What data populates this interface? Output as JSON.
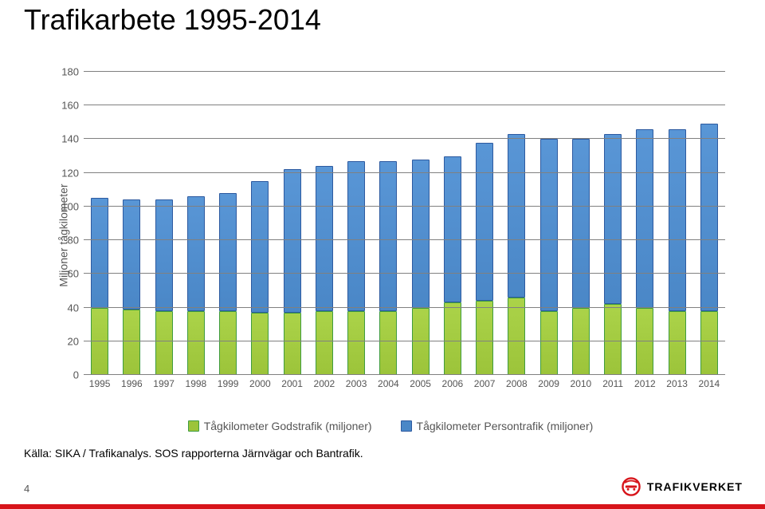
{
  "title": "Trafikarbete 1995-2014",
  "chart": {
    "type": "stacked-bar",
    "y_label": "Miljoner tågkilometer",
    "ylim": [
      0,
      180
    ],
    "ytick_step": 20,
    "yticks": [
      0,
      20,
      40,
      60,
      80,
      100,
      120,
      140,
      160,
      180
    ],
    "categories": [
      "1995",
      "1996",
      "1997",
      "1998",
      "1999",
      "2000",
      "2001",
      "2002",
      "2003",
      "2004",
      "2005",
      "2006",
      "2007",
      "2008",
      "2009",
      "2010",
      "2011",
      "2012",
      "2013",
      "2014"
    ],
    "series": [
      {
        "name": "Tågkilometer Godstrafik (miljoner)",
        "color": "#9cc43a",
        "border_color": "#3f9c3f",
        "values": [
          40,
          39,
          38,
          38,
          38,
          37,
          37,
          38,
          38,
          38,
          40,
          43,
          44,
          46,
          38,
          40,
          42,
          40,
          38,
          38
        ]
      },
      {
        "name": "Tågkilometer Persontrafik (miljoner)",
        "color": "#4a87c7",
        "border_color": "#2d5aa0",
        "values": [
          65,
          65,
          66,
          68,
          70,
          78,
          85,
          86,
          89,
          89,
          88,
          87,
          94,
          97,
          102,
          100,
          101,
          106,
          108,
          111
        ]
      }
    ],
    "gridline_color": "#808080",
    "background_color": "#ffffff",
    "bar_width": 0.55,
    "label_fontsize": 14,
    "tick_fontsize": 13
  },
  "source_text": "Källa: SIKA / Trafikanalys. SOS rapporterna Järnvägar och Bantrafik.",
  "footer": {
    "page_number": "4",
    "brand_name": "TRAFIKVERKET",
    "brand_color": "#d7141a"
  }
}
